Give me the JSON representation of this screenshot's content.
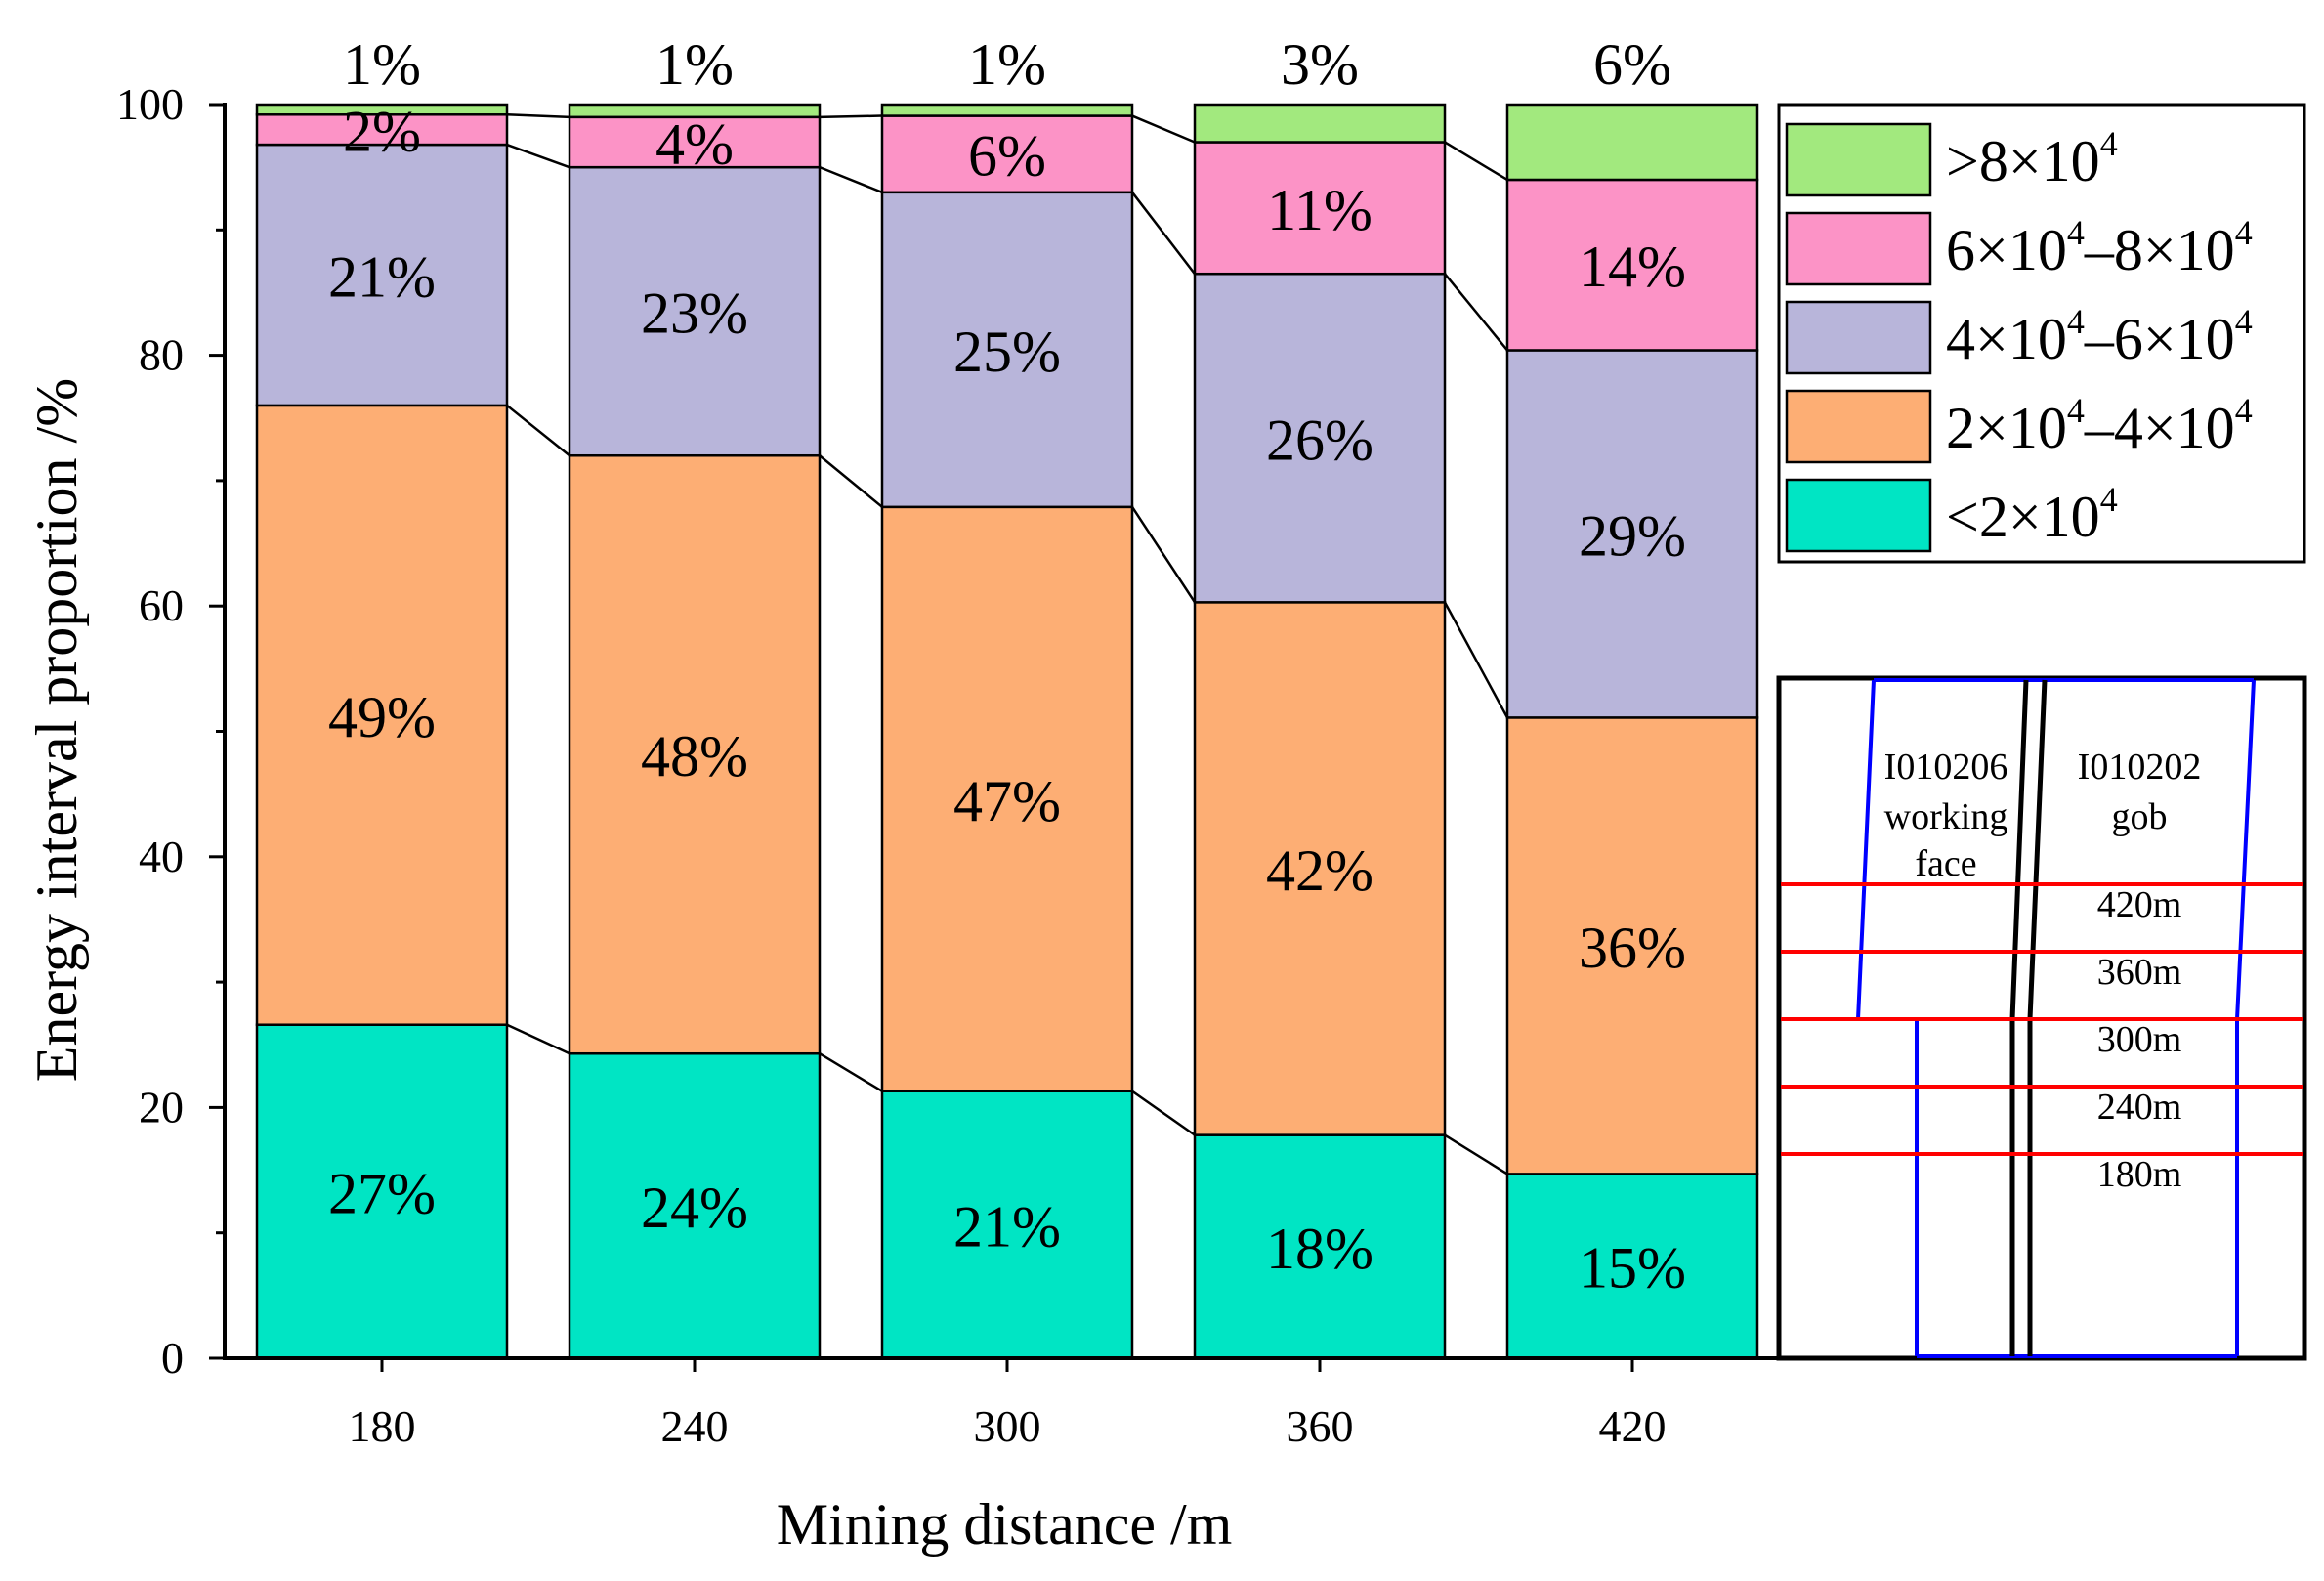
{
  "chart_data": {
    "type": "bar",
    "stacked": true,
    "title": "",
    "xlabel": "Mining distance /m",
    "ylabel": "Energy interval proportion /%",
    "ylim": [
      0,
      100
    ],
    "yticks": [
      "0",
      "20",
      "40",
      "60",
      "80",
      "100"
    ],
    "categories": [
      "180",
      "240",
      "300",
      "360",
      "420"
    ],
    "series": [
      {
        "name": "<2×10⁴",
        "color": "#00E5C4",
        "values": [
          26.6,
          24.3,
          21.3,
          17.8,
          14.7
        ],
        "labels": [
          "27%",
          "24%",
          "21%",
          "18%",
          "15%"
        ]
      },
      {
        "name": "2×10⁴–4×10⁴",
        "color": "#FDAE74",
        "values": [
          49.4,
          47.7,
          46.6,
          42.5,
          36.4
        ],
        "labels": [
          "49%",
          "48%",
          "47%",
          "42%",
          "36%"
        ]
      },
      {
        "name": "4×10⁴–6×10⁴",
        "color": "#B8B5DA",
        "values": [
          20.8,
          23.0,
          25.1,
          26.2,
          29.3
        ],
        "labels": [
          "21%",
          "23%",
          "25%",
          "26%",
          "29%"
        ]
      },
      {
        "name": "6×10⁴–8×10⁴",
        "color": "#FC93C6",
        "values": [
          2.4,
          4.0,
          6.1,
          10.5,
          13.6
        ],
        "labels": [
          "2%",
          "4%",
          "6%",
          "11%",
          "14%"
        ]
      },
      {
        "name": ">8×10⁴",
        "color": "#A2E97E",
        "values": [
          0.8,
          1.0,
          0.9,
          3.0,
          6.0
        ],
        "labels": [
          "1%",
          "1%",
          "1%",
          "3%",
          "6%"
        ]
      }
    ],
    "legend_position": "top-right",
    "legend": [
      {
        "base": ">8×10",
        "exp1": "4",
        "mid": "",
        "exp2": ""
      },
      {
        "base": "6×10",
        "exp1": "4",
        "mid": "–8×10",
        "exp2": "4"
      },
      {
        "base": "4×10",
        "exp1": "4",
        "mid": "–6×10",
        "exp2": "4"
      },
      {
        "base": "2×10",
        "exp1": "4",
        "mid": "–4×10",
        "exp2": "4"
      },
      {
        "base": "<2×10",
        "exp1": "4",
        "mid": "",
        "exp2": ""
      }
    ]
  },
  "inset": {
    "working_face_lines": [
      "I010206",
      "working",
      "face"
    ],
    "gob_lines": [
      "I010202",
      "gob"
    ],
    "distance_labels": [
      "420m",
      "360m",
      "300m",
      "240m",
      "180m"
    ]
  }
}
